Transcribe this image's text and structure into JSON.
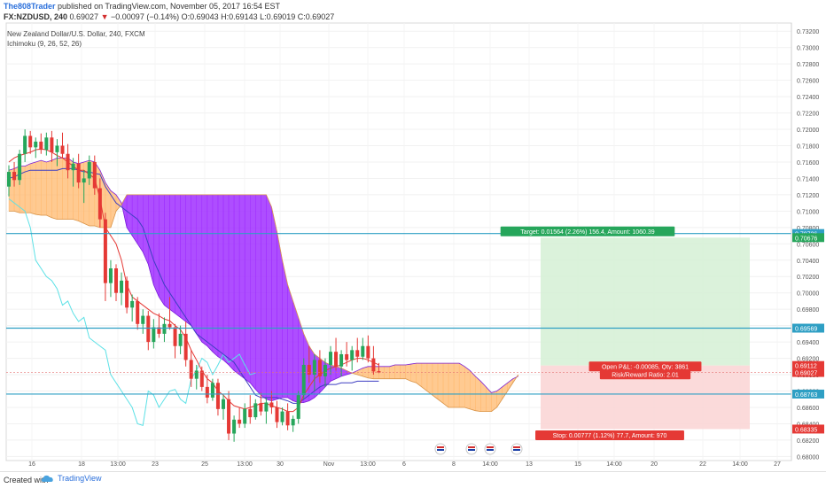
{
  "header": {
    "author": "The808Trader",
    "published": "published on TradingView.com, November 05, 2017 16:54 EST",
    "symbol": "FX:NZDUSD, 240",
    "last": "0.69027",
    "change": "−0.00097 (−0.14%)",
    "ohlc": "O:0.69043 H:0.69143 L:0.69019 C:0.69027"
  },
  "legend": {
    "instrument": "New Zealand Dollar/U.S. Dollar, 240, FXCM",
    "indicator": "Ichimoku (9, 26, 52, 26)"
  },
  "colors": {
    "cloud_bear": "#9c27ff",
    "cloud_bull": "#ffb86c",
    "tenkan": "#e53935",
    "kijun": "#3f3fc2",
    "chikou": "#5ce1e6",
    "up_candle": "#26a65b",
    "down_candle": "#e53935",
    "level_line": "#2e9fc4",
    "target_zone": "#d5f0d5",
    "stop_zone": "#fbd6d6"
  },
  "chart_data": {
    "type": "candlestick",
    "title": "New Zealand Dollar/U.S. Dollar, 240, FXCM",
    "y_range": [
      0.6795,
      0.733
    ],
    "y_ticks": [
      "0.73200",
      "0.73000",
      "0.72800",
      "0.72600",
      "0.72400",
      "0.72200",
      "0.72000",
      "0.71800",
      "0.71600",
      "0.71400",
      "0.71200",
      "0.71000",
      "0.70800",
      "0.70600",
      "0.70400",
      "0.70200",
      "0.70000",
      "0.69800",
      "0.69600",
      "0.69400",
      "0.69200",
      "0.69000",
      "0.68800",
      "0.68600",
      "0.68400",
      "0.68200",
      "0.68000"
    ],
    "x_tick_labels": [
      "16",
      "18",
      "13:00",
      "23",
      "25",
      "13:00",
      "30",
      "Nov",
      "13:00",
      "6",
      "8",
      "14:00",
      "13",
      "15",
      "14:00",
      "20",
      "22",
      "14:00",
      "27"
    ],
    "horizontal_levels": [
      0.70726,
      0.69569,
      0.68763
    ],
    "price_labels": [
      {
        "text": "0.70726",
        "kind": "level"
      },
      {
        "text": "0.70676",
        "kind": "target"
      },
      {
        "text": "0.69569",
        "kind": "level"
      },
      {
        "text": "0.69112",
        "kind": "entry"
      },
      {
        "text": "0.69027",
        "kind": "last"
      },
      {
        "text": "0.68763",
        "kind": "level"
      },
      {
        "text": "0.68335",
        "kind": "stop"
      }
    ],
    "position": {
      "entry": 0.69112,
      "target": 0.70676,
      "stop": 0.68335,
      "target_label": "Target: 0.01564 (2.26%) 156.4, Amount: 1060.39",
      "open_label": "Open P&L: -0.00085, Qty: 3861",
      "ratio_label": "Risk/Reward Ratio: 2.01",
      "stop_label": "Stop: 0.00777 (1.12%) 77.7, Amount: 970"
    },
    "candles": [
      [
        0.713,
        0.7156,
        0.7118,
        0.7148
      ],
      [
        0.7148,
        0.716,
        0.713,
        0.7138
      ],
      [
        0.7138,
        0.7175,
        0.7132,
        0.717
      ],
      [
        0.717,
        0.72,
        0.716,
        0.7192
      ],
      [
        0.7192,
        0.7198,
        0.717,
        0.7178
      ],
      [
        0.7178,
        0.719,
        0.7165,
        0.7185
      ],
      [
        0.7185,
        0.7195,
        0.717,
        0.7175
      ],
      [
        0.7175,
        0.7196,
        0.7168,
        0.719
      ],
      [
        0.719,
        0.7198,
        0.716,
        0.7172
      ],
      [
        0.7172,
        0.7188,
        0.7155,
        0.718
      ],
      [
        0.718,
        0.7196,
        0.7165,
        0.717
      ],
      [
        0.717,
        0.7182,
        0.714,
        0.715
      ],
      [
        0.715,
        0.7165,
        0.713,
        0.7158
      ],
      [
        0.7158,
        0.717,
        0.7128,
        0.7135
      ],
      [
        0.7135,
        0.715,
        0.711,
        0.714
      ],
      [
        0.714,
        0.7168,
        0.7132,
        0.716
      ],
      [
        0.716,
        0.7168,
        0.712,
        0.7128
      ],
      [
        0.7128,
        0.714,
        0.708,
        0.709
      ],
      [
        0.709,
        0.7098,
        0.699,
        0.7012
      ],
      [
        0.7012,
        0.704,
        0.6995,
        0.703
      ],
      [
        0.703,
        0.7035,
        0.699,
        0.7
      ],
      [
        0.7,
        0.7025,
        0.6985,
        0.7015
      ],
      [
        0.7015,
        0.702,
        0.6975,
        0.6982
      ],
      [
        0.6982,
        0.6998,
        0.6965,
        0.699
      ],
      [
        0.699,
        0.6995,
        0.6955,
        0.6962
      ],
      [
        0.6962,
        0.698,
        0.695,
        0.6972
      ],
      [
        0.6972,
        0.6978,
        0.693,
        0.694
      ],
      [
        0.694,
        0.6968,
        0.6932,
        0.6958
      ],
      [
        0.6958,
        0.6975,
        0.6945,
        0.695
      ],
      [
        0.695,
        0.697,
        0.694,
        0.6962
      ],
      [
        0.6962,
        0.6995,
        0.6955,
        0.6958
      ],
      [
        0.6958,
        0.6962,
        0.692,
        0.6935
      ],
      [
        0.6935,
        0.696,
        0.6925,
        0.695
      ],
      [
        0.695,
        0.6965,
        0.691,
        0.6918
      ],
      [
        0.6918,
        0.693,
        0.6885,
        0.6895
      ],
      [
        0.6895,
        0.6912,
        0.6882,
        0.6905
      ],
      [
        0.6905,
        0.691,
        0.688,
        0.6885
      ],
      [
        0.6885,
        0.69,
        0.6865,
        0.6872
      ],
      [
        0.6872,
        0.6895,
        0.6868,
        0.689
      ],
      [
        0.689,
        0.6895,
        0.685,
        0.6858
      ],
      [
        0.6858,
        0.6875,
        0.6845,
        0.687
      ],
      [
        0.687,
        0.688,
        0.682,
        0.6828
      ],
      [
        0.6828,
        0.685,
        0.6818,
        0.6845
      ],
      [
        0.6845,
        0.686,
        0.6835,
        0.684
      ],
      [
        0.684,
        0.6865,
        0.6835,
        0.6858
      ],
      [
        0.6858,
        0.6875,
        0.684,
        0.6848
      ],
      [
        0.6848,
        0.687,
        0.6845,
        0.6865
      ],
      [
        0.6865,
        0.6878,
        0.685,
        0.6855
      ],
      [
        0.6855,
        0.6872,
        0.684,
        0.6866
      ],
      [
        0.6866,
        0.688,
        0.6852,
        0.686
      ],
      [
        0.686,
        0.6868,
        0.6835,
        0.6842
      ],
      [
        0.6842,
        0.686,
        0.6838,
        0.6855
      ],
      [
        0.6855,
        0.6865,
        0.6832,
        0.6838
      ],
      [
        0.6838,
        0.685,
        0.683,
        0.6846
      ],
      [
        0.6846,
        0.688,
        0.684,
        0.6875
      ],
      [
        0.6875,
        0.692,
        0.687,
        0.6912
      ],
      [
        0.6912,
        0.6935,
        0.689,
        0.69
      ],
      [
        0.69,
        0.6925,
        0.688,
        0.6918
      ],
      [
        0.6918,
        0.693,
        0.689,
        0.6898
      ],
      [
        0.6898,
        0.692,
        0.6885,
        0.6912
      ],
      [
        0.6912,
        0.6935,
        0.69,
        0.6928
      ],
      [
        0.6928,
        0.6945,
        0.6905,
        0.691
      ],
      [
        0.691,
        0.693,
        0.6898,
        0.6925
      ],
      [
        0.6925,
        0.694,
        0.691,
        0.6918
      ],
      [
        0.6918,
        0.6935,
        0.6905,
        0.693
      ],
      [
        0.693,
        0.6945,
        0.6915,
        0.6922
      ],
      [
        0.6922,
        0.6945,
        0.6918,
        0.6935
      ],
      [
        0.6935,
        0.6948,
        0.6915,
        0.692
      ],
      [
        0.692,
        0.6935,
        0.69,
        0.6904
      ],
      [
        0.69043,
        0.69143,
        0.69019,
        0.69027
      ]
    ],
    "tenkan": [
      0.716,
      0.7165,
      0.7168,
      0.717,
      0.7172,
      0.7175,
      0.7176,
      0.7175,
      0.7172,
      0.7168,
      0.7165,
      0.716,
      0.7155,
      0.715,
      0.715,
      0.7145,
      0.714,
      0.7115,
      0.708,
      0.707,
      0.706,
      0.704,
      0.701,
      0.6995,
      0.699,
      0.6985,
      0.698,
      0.6975,
      0.6972,
      0.6968,
      0.6966,
      0.696,
      0.6955,
      0.6945,
      0.693,
      0.6918,
      0.6905,
      0.6895,
      0.689,
      0.688,
      0.6875,
      0.6868,
      0.6862,
      0.686,
      0.6858,
      0.686,
      0.6862,
      0.6865,
      0.6865,
      0.6862,
      0.686,
      0.6858,
      0.6855,
      0.6855,
      0.686,
      0.6875,
      0.6885,
      0.6895,
      0.69,
      0.6905,
      0.6908,
      0.691,
      0.6912,
      0.6915,
      0.6918,
      0.692,
      0.692,
      0.6918,
      0.6915,
      0.6912
    ],
    "kijun": [
      0.714,
      0.7142,
      0.7145,
      0.7148,
      0.715,
      0.715,
      0.715,
      0.715,
      0.715,
      0.715,
      0.7152,
      0.7152,
      0.7152,
      0.715,
      0.7148,
      0.7148,
      0.7146,
      0.7145,
      0.713,
      0.712,
      0.711,
      0.7105,
      0.71,
      0.7095,
      0.709,
      0.708,
      0.706,
      0.704,
      0.7025,
      0.701,
      0.7,
      0.699,
      0.698,
      0.697,
      0.696,
      0.695,
      0.6945,
      0.694,
      0.6935,
      0.693,
      0.6925,
      0.692,
      0.6915,
      0.6905,
      0.6895,
      0.6885,
      0.6875,
      0.6872,
      0.6872,
      0.6872,
      0.6872,
      0.687,
      0.6868,
      0.6865,
      0.6865,
      0.687,
      0.6875,
      0.688,
      0.6885,
      0.6888,
      0.6888,
      0.6888,
      0.689,
      0.689,
      0.689,
      0.6892,
      0.6892,
      0.6892,
      0.6892,
      0.6892
    ],
    "chikou": [
      0.7115,
      0.711,
      0.7105,
      0.71,
      0.708,
      0.704,
      0.703,
      0.702,
      0.7015,
      0.7005,
      0.6985,
      0.699,
      0.6975,
      0.6965,
      0.697,
      0.6945,
      0.694,
      0.6935,
      0.693,
      0.69,
      0.689,
      0.688,
      0.687,
      0.686,
      0.684,
      0.6838,
      0.688,
      0.6875,
      0.686,
      0.687,
      0.688,
      0.6882,
      0.687,
      0.6865,
      0.6895,
      0.6905,
      0.692,
      0.6915,
      0.69,
      0.6912,
      0.6925,
      0.6915,
      0.692,
      0.6925,
      0.6912,
      0.69,
      0.6902
    ],
    "span_a": [
      0.715,
      0.7152,
      0.7155,
      0.7155,
      0.7158,
      0.716,
      0.7162,
      0.716,
      0.7162,
      0.7165,
      0.7165,
      0.7165,
      0.716,
      0.7158,
      0.716,
      0.7162,
      0.716,
      0.715,
      0.7135,
      0.7125,
      0.712,
      0.711,
      0.708,
      0.707,
      0.706,
      0.705,
      0.7035,
      0.701,
      0.6995,
      0.6985,
      0.698,
      0.6975,
      0.697,
      0.6965,
      0.696,
      0.695,
      0.694,
      0.6935,
      0.6928,
      0.6922,
      0.6918,
      0.6912,
      0.6905,
      0.69,
      0.6895,
      0.689,
      0.6882,
      0.6875,
      0.687,
      0.6868,
      0.687,
      0.6872,
      0.6872,
      0.6868,
      0.6866,
      0.6866,
      0.6868,
      0.6872,
      0.6878,
      0.6885,
      0.6892,
      0.6895,
      0.6898,
      0.69,
      0.6902,
      0.6905,
      0.6908,
      0.691,
      0.691,
      0.691,
      0.691,
      0.691,
      0.6912,
      0.6912,
      0.6912,
      0.6913,
      0.6914,
      0.6914,
      0.6914,
      0.6914,
      0.6914,
      0.6914,
      0.6914,
      0.6914,
      0.6914,
      0.691,
      0.6905,
      0.6898,
      0.6892,
      0.6885,
      0.6878,
      0.688,
      0.6885,
      0.689,
      0.6895,
      0.6898
    ],
    "span_b": [
      0.71,
      0.71,
      0.7098,
      0.7098,
      0.7098,
      0.7096,
      0.7095,
      0.7095,
      0.7092,
      0.709,
      0.709,
      0.709,
      0.709,
      0.7088,
      0.7085,
      0.7082,
      0.7082,
      0.708,
      0.708,
      0.708,
      0.71,
      0.7108,
      0.712,
      0.712,
      0.712,
      0.712,
      0.712,
      0.712,
      0.712,
      0.712,
      0.712,
      0.712,
      0.712,
      0.712,
      0.712,
      0.712,
      0.712,
      0.712,
      0.712,
      0.712,
      0.712,
      0.712,
      0.712,
      0.712,
      0.712,
      0.712,
      0.712,
      0.712,
      0.712,
      0.7105,
      0.7075,
      0.704,
      0.701,
      0.699,
      0.697,
      0.695,
      0.6935,
      0.6925,
      0.692,
      0.6915,
      0.6912,
      0.691,
      0.6908,
      0.6905,
      0.6902,
      0.69,
      0.6898,
      0.6896,
      0.6895,
      0.6895,
      0.6895,
      0.6895,
      0.6895,
      0.6895,
      0.6895,
      0.6892,
      0.689,
      0.6885,
      0.688,
      0.6875,
      0.687,
      0.6865,
      0.686,
      0.686,
      0.686,
      0.686,
      0.6858,
      0.6856,
      0.6855,
      0.6855,
      0.6855,
      0.686,
      0.687,
      0.688,
      0.689,
      0.69
    ]
  },
  "footer": {
    "created": "Created with",
    "brand": "TradingView"
  }
}
